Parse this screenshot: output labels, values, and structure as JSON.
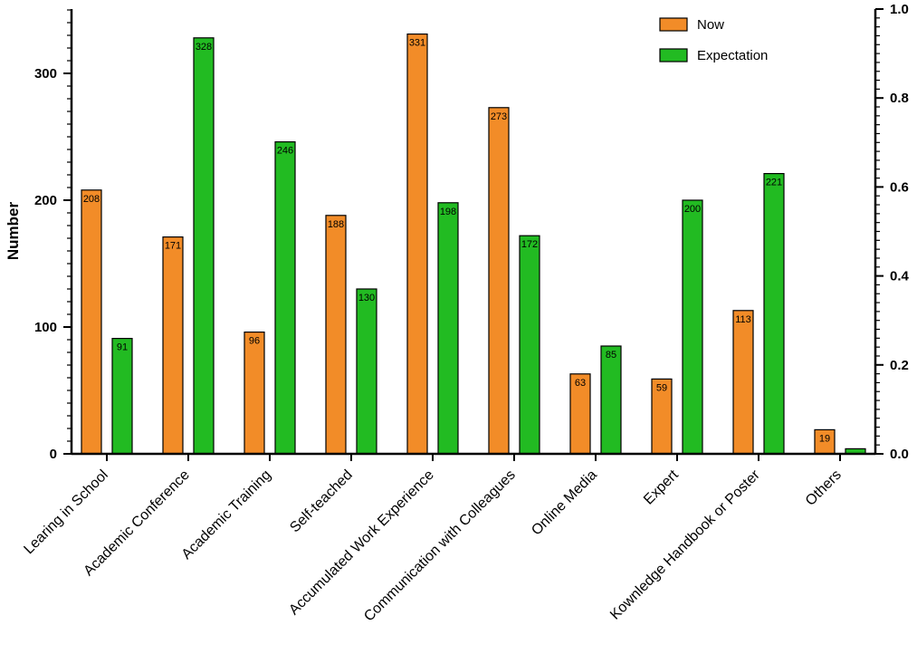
{
  "chart_data": {
    "type": "bar",
    "title": "",
    "xlabel": "",
    "ylabel": "Number",
    "ylim": [
      0,
      350
    ],
    "y_ticks": [
      0,
      100,
      200,
      300
    ],
    "y2lim": [
      0,
      1.0
    ],
    "y2_ticks": [
      "0.0",
      "0.2",
      "0.4",
      "0.6",
      "0.8",
      "1.0"
    ],
    "categories": [
      "Learing in School",
      "Academic Conference",
      "Academic Training",
      "Self-teached",
      "Accumulated Work Experience",
      "Communication with Colleagues",
      "Online Media",
      "Expert",
      "Kownledge Handbook or Poster",
      "Others"
    ],
    "series": [
      {
        "name": "Now",
        "color": "#f28c28",
        "values": [
          208,
          171,
          96,
          188,
          331,
          273,
          63,
          59,
          113,
          19
        ],
        "labels": [
          "208",
          "171",
          "96",
          "188",
          "331",
          "273",
          "63",
          "59",
          "113",
          "19"
        ]
      },
      {
        "name": "Expectation",
        "color": "#22bb22",
        "values": [
          91,
          328,
          246,
          130,
          198,
          172,
          85,
          200,
          221,
          4
        ],
        "labels": [
          "91",
          "328",
          "246",
          "130",
          "198",
          "172",
          "85",
          "200",
          "221",
          ""
        ]
      }
    ],
    "legend_position": "top-right",
    "grid": false
  }
}
